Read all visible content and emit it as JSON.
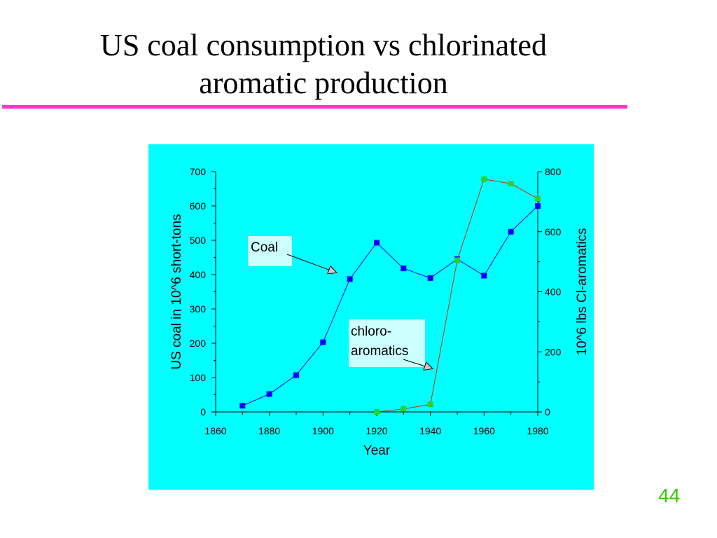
{
  "slide": {
    "title_line1": "US coal consumption vs chlorinated",
    "title_line2": "aromatic production",
    "page_number": "44",
    "rule_color": "#ff33cc",
    "panel_color": "#00ffff",
    "page_number_color": "#33cc00"
  },
  "chart_data": {
    "type": "line",
    "xlabel": "Year",
    "ylabel_left": "US coal  in 10^6 short-tons",
    "ylabel_right": "10^6 lbs Cl-aromatics",
    "xlim": [
      1860,
      1980
    ],
    "ylim_left": [
      0,
      700
    ],
    "ylim_right": [
      0,
      800
    ],
    "x_ticks": [
      "1860",
      "1880",
      "1900",
      "1920",
      "1940",
      "1960",
      "1980"
    ],
    "y_left_ticks": [
      "0",
      "100",
      "200",
      "300",
      "400",
      "500",
      "600",
      "700"
    ],
    "y_right_ticks": [
      "0",
      "200",
      "400",
      "600",
      "800"
    ],
    "grid": false,
    "series": [
      {
        "axis": "left",
        "color": "#0000ff",
        "marker_color": "#0000ff",
        "points": [
          {
            "x": 1870,
            "y": 18
          },
          {
            "x": 1880,
            "y": 52
          },
          {
            "x": 1890,
            "y": 107
          },
          {
            "x": 1900,
            "y": 203
          },
          {
            "x": 1910,
            "y": 387
          },
          {
            "x": 1920,
            "y": 493
          },
          {
            "x": 1930,
            "y": 418
          },
          {
            "x": 1940,
            "y": 390
          },
          {
            "x": 1950,
            "y": 445
          },
          {
            "x": 1960,
            "y": 397
          },
          {
            "x": 1970,
            "y": 525
          },
          {
            "x": 1980,
            "y": 600
          }
        ]
      },
      {
        "axis": "right",
        "color": "#cc3300",
        "marker_color": "#33cc33",
        "points": [
          {
            "x": 1920,
            "y": 0
          },
          {
            "x": 1930,
            "y": 10
          },
          {
            "x": 1940,
            "y": 25
          },
          {
            "x": 1950,
            "y": 505
          },
          {
            "x": 1960,
            "y": 775
          },
          {
            "x": 1970,
            "y": 760
          },
          {
            "x": 1980,
            "y": 710
          }
        ]
      }
    ],
    "annotations": [
      {
        "label_lines": [
          "Coal"
        ]
      },
      {
        "label_lines": [
          "chloro-",
          "aromatics"
        ]
      }
    ]
  }
}
